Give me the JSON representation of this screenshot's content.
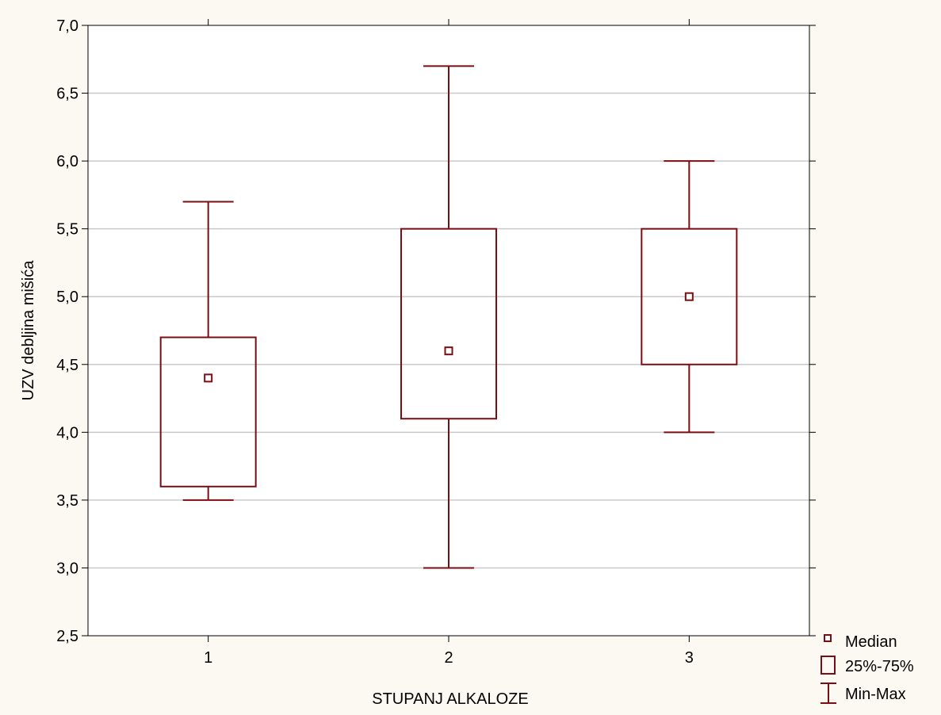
{
  "chart_data": {
    "type": "box",
    "xlabel": "STUPANJ ALKALOZE",
    "ylabel": "UZV debljina mišića",
    "ylim": [
      2.5,
      7.0
    ],
    "yticks": [
      "2,5",
      "3,0",
      "3,5",
      "4,0",
      "4,5",
      "5,0",
      "5,5",
      "6,0",
      "6,5",
      "7,0"
    ],
    "ytick_values": [
      2.5,
      3.0,
      3.5,
      4.0,
      4.5,
      5.0,
      5.5,
      6.0,
      6.5,
      7.0
    ],
    "categories": [
      "1",
      "2",
      "3"
    ],
    "grid": true,
    "legend_position": "bottom-right",
    "legend": {
      "median_label": "Median",
      "box_label": "25%-75%",
      "whisker_label": "Min-Max"
    },
    "series": [
      {
        "category": "1",
        "min": 3.5,
        "q1": 3.6,
        "median": 4.4,
        "q3": 4.7,
        "max": 5.7
      },
      {
        "category": "2",
        "min": 3.0,
        "q1": 4.1,
        "median": 4.6,
        "q3": 5.5,
        "max": 6.7
      },
      {
        "category": "3",
        "min": 4.0,
        "q1": 4.5,
        "median": 5.0,
        "q3": 5.5,
        "max": 6.0
      }
    ],
    "colors": {
      "box": "#7b0e12",
      "grid": "#c9c9c9",
      "plot_background": "#ffffff",
      "page_background": "#fbf9f1"
    }
  }
}
